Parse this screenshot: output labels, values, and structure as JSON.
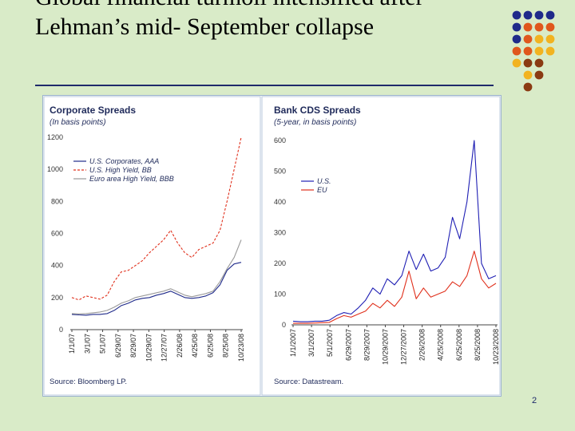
{
  "slide": {
    "title": "Global financial turmoil intensified after Lehman’s mid- September collapse",
    "page_number": "2",
    "dot_colors": [
      "#1f2a8a",
      "#e0571c",
      "#f2b320",
      "#8a3a12"
    ]
  },
  "chart_data": [
    {
      "type": "line",
      "title": "Corporate Spreads",
      "subtitle": "(In basis points)",
      "source": "Source: Bloomberg LP.",
      "ylim": [
        0,
        1200
      ],
      "yticks": [
        0,
        200,
        400,
        600,
        800,
        1000,
        1200
      ],
      "x_tick_labels": [
        "1/1/07",
        "3/1/07",
        "5/1/07",
        "6/29/07",
        "8/29/07",
        "10/29/07",
        "12/27/07",
        "2/26/08",
        "4/25/08",
        "6/25/08",
        "8/25/08",
        "10/23/08"
      ],
      "legend_position": "top-left",
      "series": [
        {
          "name": "U.S. Corporates, AAA",
          "color": "#1f2a8a",
          "style": "solid",
          "values": [
            95,
            92,
            90,
            95,
            95,
            100,
            120,
            150,
            165,
            185,
            195,
            200,
            215,
            225,
            240,
            220,
            200,
            195,
            200,
            210,
            230,
            280,
            370,
            410,
            420
          ]
        },
        {
          "name": "U.S. High Yield, BB",
          "color": "#e0301c",
          "style": "dashed",
          "values": [
            200,
            185,
            210,
            200,
            190,
            215,
            300,
            360,
            370,
            400,
            430,
            480,
            520,
            560,
            620,
            540,
            480,
            450,
            500,
            520,
            540,
            620,
            800,
            1000,
            1200
          ]
        },
        {
          "name": "Euro area High Yield, BBB",
          "color": "#9a9a9a",
          "style": "solid",
          "values": [
            100,
            98,
            100,
            105,
            110,
            120,
            140,
            165,
            180,
            200,
            210,
            220,
            230,
            240,
            255,
            235,
            215,
            205,
            215,
            225,
            240,
            300,
            380,
            450,
            560
          ]
        }
      ]
    },
    {
      "type": "line",
      "title": "Bank CDS Spreads",
      "subtitle": "(5-year, in basis points)",
      "source": "Source: Datastream.",
      "ylim": [
        0,
        600
      ],
      "yticks": [
        0,
        100,
        200,
        300,
        400,
        500,
        600
      ],
      "x_tick_labels": [
        "1/1/2007",
        "3/1/2007",
        "5/1/2007",
        "6/29/2007",
        "8/29/2007",
        "10/29/2007",
        "12/27/2007",
        "2/26/2008",
        "4/25/2008",
        "6/25/2008",
        "8/25/2008",
        "10/23/2008"
      ],
      "legend_position": "middle-left",
      "series": [
        {
          "name": "U.S.",
          "color": "#1f1fb4",
          "style": "solid",
          "values": [
            12,
            10,
            10,
            12,
            12,
            15,
            30,
            40,
            35,
            55,
            80,
            120,
            100,
            150,
            130,
            160,
            240,
            180,
            230,
            175,
            185,
            220,
            350,
            280,
            400,
            600,
            200,
            150,
            160
          ]
        },
        {
          "name": "EU",
          "color": "#e0301c",
          "style": "solid",
          "values": [
            5,
            5,
            5,
            6,
            7,
            8,
            20,
            30,
            25,
            35,
            45,
            70,
            55,
            80,
            60,
            90,
            175,
            85,
            120,
            90,
            100,
            110,
            140,
            125,
            160,
            240,
            150,
            120,
            135
          ]
        }
      ]
    }
  ]
}
